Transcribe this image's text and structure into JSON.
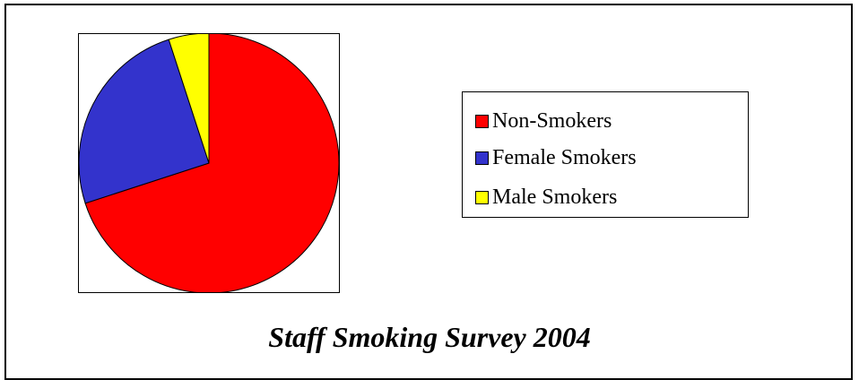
{
  "chart_data": {
    "type": "pie",
    "title": "Staff Smoking Survey 2004",
    "categories": [
      "Non-Smokers",
      "Female Smokers",
      "Male Smokers"
    ],
    "values": [
      70,
      25,
      5
    ],
    "colors": [
      "#ff0000",
      "#3333cc",
      "#ffff00"
    ],
    "legend_position": "right"
  }
}
